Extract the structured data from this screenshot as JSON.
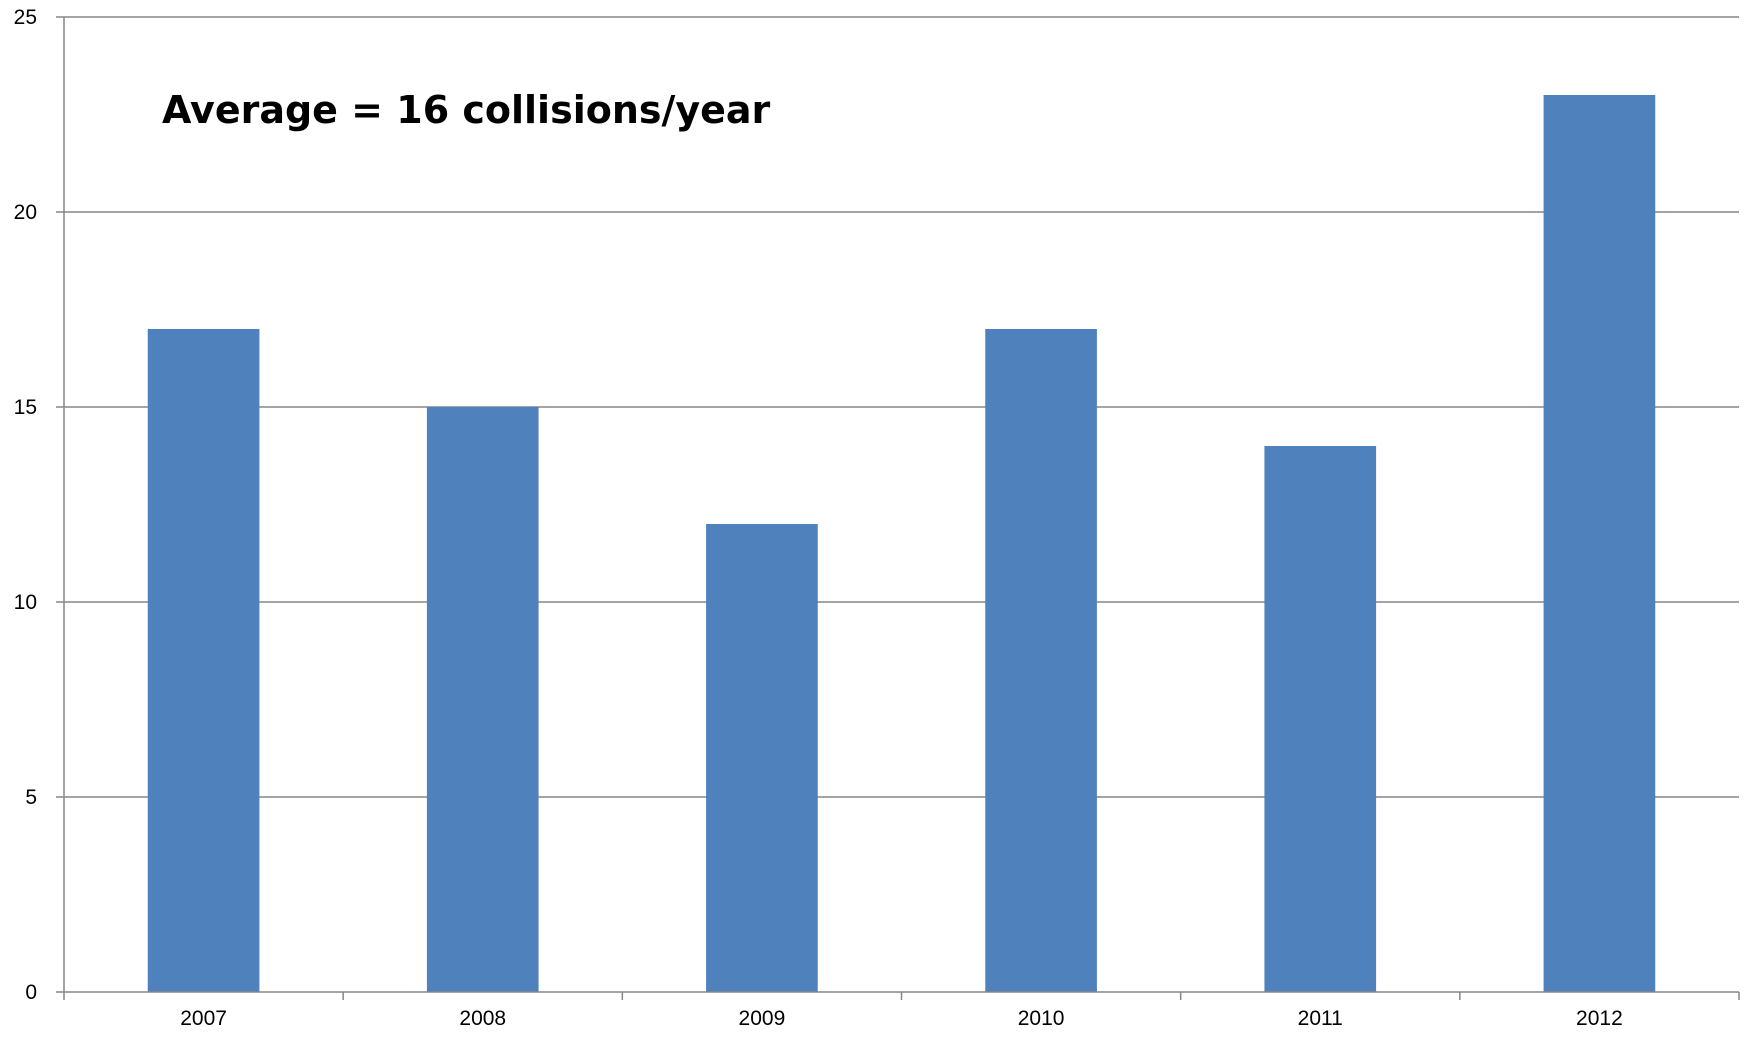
{
  "chart_data": {
    "type": "bar",
    "title": "",
    "xlabel": "",
    "ylabel": "",
    "categories": [
      "2007",
      "2008",
      "2009",
      "2010",
      "2011",
      "2012"
    ],
    "values": [
      17,
      15,
      12,
      17,
      14,
      23
    ],
    "ylim": [
      0,
      25
    ],
    "yticks": [
      0,
      5,
      10,
      15,
      20,
      25
    ],
    "grid": true,
    "legend": "none",
    "bar_color": "#4F81BD",
    "grid_color": "#868686",
    "annotation": "Average = 16 collisions/year"
  }
}
